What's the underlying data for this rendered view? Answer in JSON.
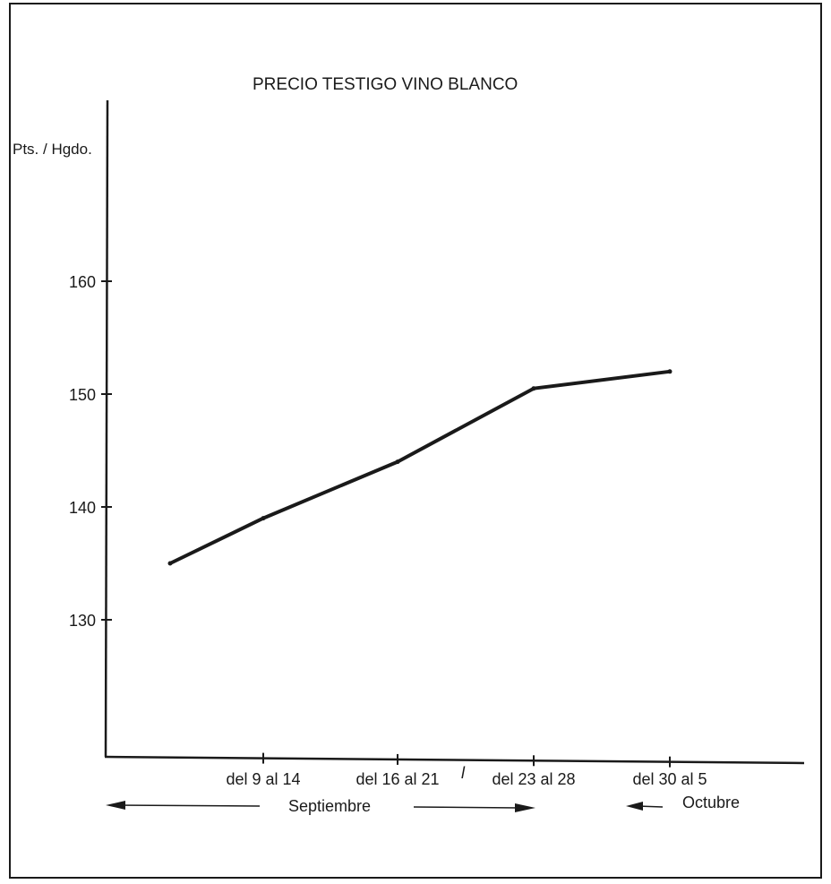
{
  "chart_data": {
    "type": "line",
    "title": "PRECIO TESTIGO VINO BLANCO",
    "ylabel": "Pts. / Hgdo.",
    "xlabel": "",
    "ylim": [
      117,
      165
    ],
    "y_ticks": [
      130,
      140,
      150,
      160
    ],
    "grid": false,
    "categories": [
      "del 9 al 14",
      "del 16 al 21",
      "del 23 al 28",
      "del 30 al 5"
    ],
    "series": [
      {
        "x": [
          "",
          "del 9 al 14",
          "del 16 al 21",
          "del 23 al 28",
          "del 30 al 5"
        ],
        "values": [
          135,
          139,
          144,
          150.5,
          152
        ]
      }
    ],
    "stray_mark": "l",
    "periods": [
      {
        "label": "Septiembre"
      },
      {
        "label": "Octubre"
      }
    ],
    "colors": {
      "line": "#1a1a1a",
      "axis": "#1a1a1a",
      "frame": "#1a1a1a"
    }
  }
}
